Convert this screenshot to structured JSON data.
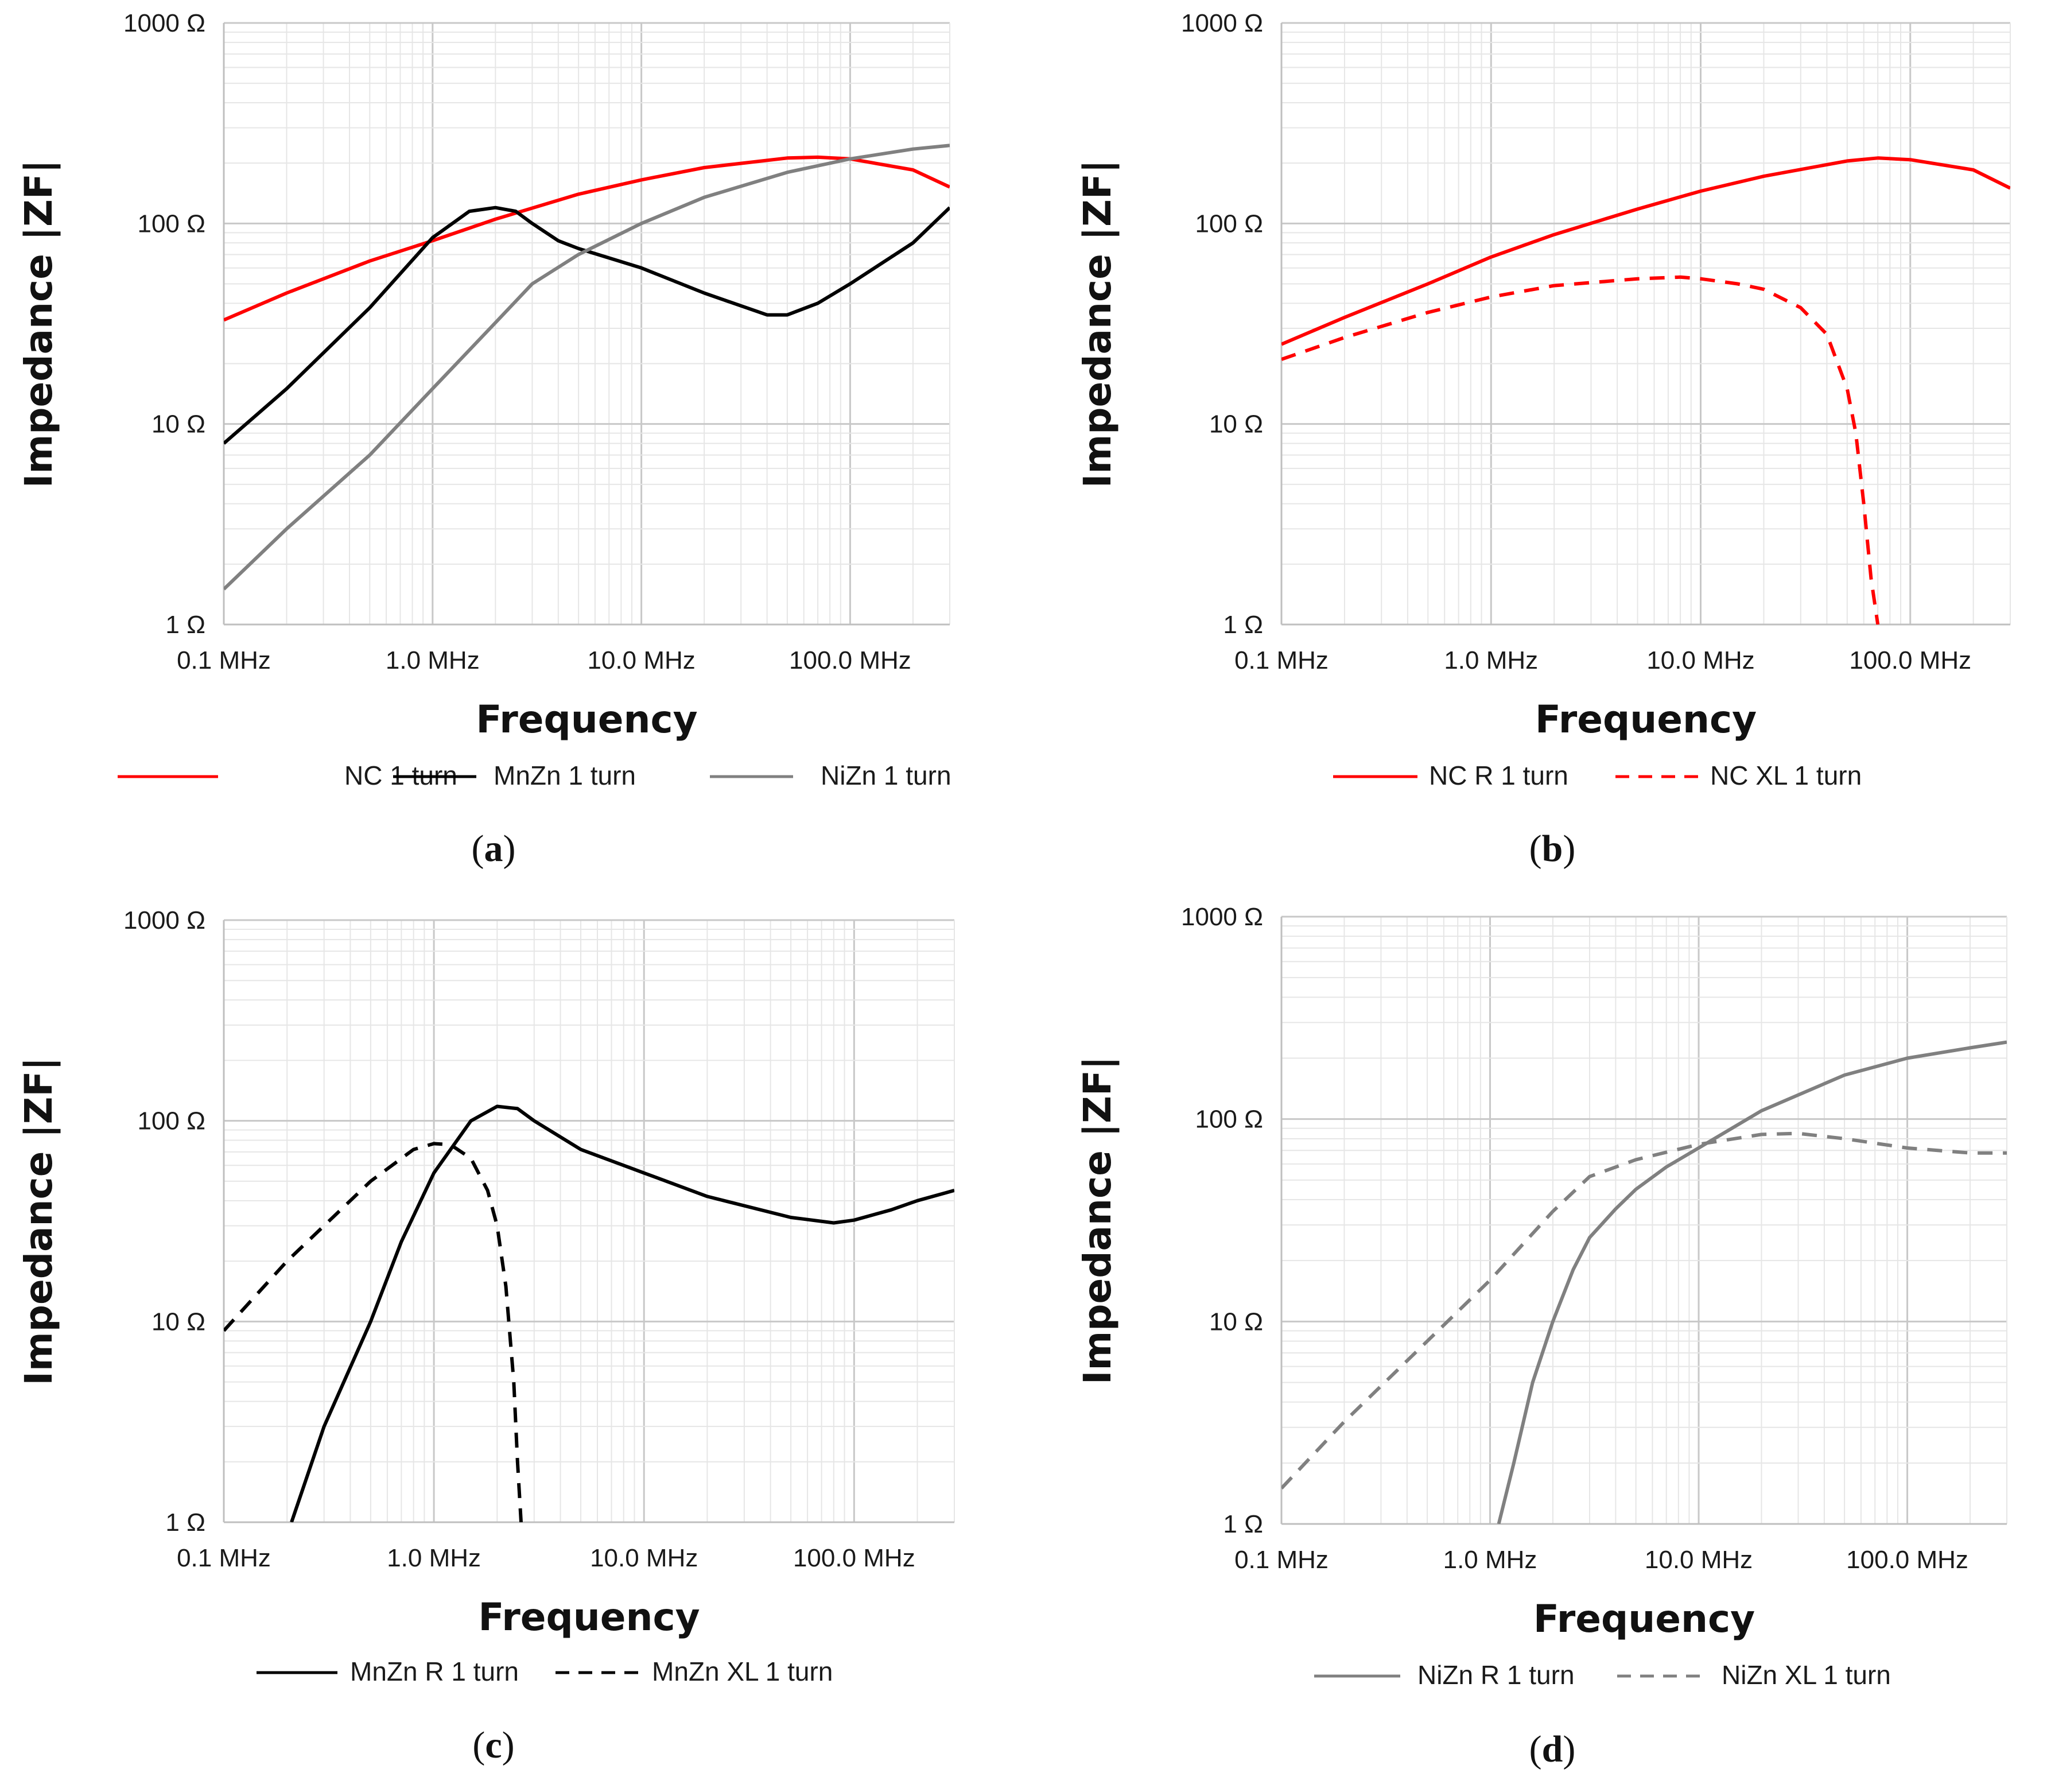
{
  "chart_data": [
    {
      "panel": "a",
      "type": "line",
      "xlabel": "Frequency",
      "ylabel": "Impedance |ZF|",
      "x_scale": "log",
      "y_scale": "log",
      "xlim": [
        0.1,
        300
      ],
      "ylim": [
        1,
        1000
      ],
      "x_ticks": [
        {
          "v": 0.1,
          "label": "0.1 MHz"
        },
        {
          "v": 1,
          "label": "1.0 MHz"
        },
        {
          "v": 10,
          "label": "10.0 MHz"
        },
        {
          "v": 100,
          "label": "100.0 MHz"
        }
      ],
      "y_ticks": [
        {
          "v": 1,
          "label": "1 Ω"
        },
        {
          "v": 10,
          "label": "10 Ω"
        },
        {
          "v": 100,
          "label": "100 Ω"
        },
        {
          "v": 1000,
          "label": "1000 Ω"
        }
      ],
      "series": [
        {
          "name": "NC 1 turn",
          "color": "#ff0000",
          "dash": "solid",
          "points": [
            [
              0.1,
              33
            ],
            [
              0.2,
              45
            ],
            [
              0.5,
              65
            ],
            [
              1,
              82
            ],
            [
              2,
              105
            ],
            [
              5,
              140
            ],
            [
              10,
              165
            ],
            [
              20,
              190
            ],
            [
              50,
              212
            ],
            [
              70,
              214
            ],
            [
              100,
              210
            ],
            [
              200,
              185
            ],
            [
              300,
              152
            ]
          ]
        },
        {
          "name": "MnZn 1 turn",
          "color": "#000000",
          "dash": "solid",
          "points": [
            [
              0.1,
              8
            ],
            [
              0.2,
              15
            ],
            [
              0.5,
              38
            ],
            [
              1,
              85
            ],
            [
              1.5,
              115
            ],
            [
              2,
              120
            ],
            [
              2.5,
              115
            ],
            [
              3,
              100
            ],
            [
              4,
              82
            ],
            [
              5,
              75
            ],
            [
              10,
              60
            ],
            [
              20,
              45
            ],
            [
              40,
              35
            ],
            [
              50,
              35
            ],
            [
              70,
              40
            ],
            [
              100,
              50
            ],
            [
              200,
              80
            ],
            [
              300,
              120
            ]
          ]
        },
        {
          "name": "NiZn 1 turn",
          "color": "#808080",
          "dash": "solid",
          "points": [
            [
              0.1,
              1.5
            ],
            [
              0.2,
              3
            ],
            [
              0.5,
              7
            ],
            [
              1,
              15
            ],
            [
              2,
              32
            ],
            [
              3,
              50
            ],
            [
              5,
              70
            ],
            [
              10,
              100
            ],
            [
              20,
              135
            ],
            [
              50,
              180
            ],
            [
              100,
              210
            ],
            [
              200,
              235
            ],
            [
              300,
              245
            ]
          ]
        }
      ]
    },
    {
      "panel": "b",
      "type": "line",
      "xlabel": "Frequency",
      "ylabel": "Impedance |ZF|",
      "x_scale": "log",
      "y_scale": "log",
      "xlim": [
        0.1,
        300
      ],
      "ylim": [
        1,
        1000
      ],
      "x_ticks": [
        {
          "v": 0.1,
          "label": "0.1 MHz"
        },
        {
          "v": 1,
          "label": "1.0 MHz"
        },
        {
          "v": 10,
          "label": "10.0 MHz"
        },
        {
          "v": 100,
          "label": "100.0 MHz"
        }
      ],
      "y_ticks": [
        {
          "v": 1,
          "label": "1 Ω"
        },
        {
          "v": 10,
          "label": "10 Ω"
        },
        {
          "v": 100,
          "label": "100 Ω"
        },
        {
          "v": 1000,
          "label": "1000 Ω"
        }
      ],
      "series": [
        {
          "name": "NC R 1 turn",
          "color": "#ff0000",
          "dash": "solid",
          "points": [
            [
              0.1,
              25
            ],
            [
              0.2,
              34
            ],
            [
              0.5,
              50
            ],
            [
              1,
              68
            ],
            [
              2,
              88
            ],
            [
              5,
              118
            ],
            [
              10,
              145
            ],
            [
              20,
              172
            ],
            [
              50,
              205
            ],
            [
              70,
              212
            ],
            [
              100,
              208
            ],
            [
              200,
              185
            ],
            [
              300,
              150
            ]
          ]
        },
        {
          "name": "NC XL 1 turn",
          "color": "#ff0000",
          "dash": "dashed",
          "points": [
            [
              0.1,
              21
            ],
            [
              0.2,
              27
            ],
            [
              0.5,
              36
            ],
            [
              1,
              43
            ],
            [
              2,
              49
            ],
            [
              5,
              53
            ],
            [
              8,
              54
            ],
            [
              10,
              53
            ],
            [
              15,
              50
            ],
            [
              20,
              47
            ],
            [
              30,
              38
            ],
            [
              40,
              28
            ],
            [
              50,
              15
            ],
            [
              55,
              9
            ],
            [
              60,
              4
            ],
            [
              65,
              1.7
            ],
            [
              70,
              1
            ]
          ]
        }
      ]
    },
    {
      "panel": "c",
      "type": "line",
      "xlabel": "Frequency",
      "ylabel": "Impedance |ZF|",
      "x_scale": "log",
      "y_scale": "log",
      "xlim": [
        0.1,
        300
      ],
      "ylim": [
        1,
        1000
      ],
      "x_ticks": [
        {
          "v": 0.1,
          "label": "0.1 MHz"
        },
        {
          "v": 1,
          "label": "1.0 MHz"
        },
        {
          "v": 10,
          "label": "10.0 MHz"
        },
        {
          "v": 100,
          "label": "100.0 MHz"
        }
      ],
      "y_ticks": [
        {
          "v": 1,
          "label": "1 Ω"
        },
        {
          "v": 10,
          "label": "10 Ω"
        },
        {
          "v": 100,
          "label": "100 Ω"
        },
        {
          "v": 1000,
          "label": "1000 Ω"
        }
      ],
      "series": [
        {
          "name": "MnZn R 1 turn",
          "color": "#000000",
          "dash": "solid",
          "points": [
            [
              0.21,
              1
            ],
            [
              0.3,
              3
            ],
            [
              0.5,
              10
            ],
            [
              0.7,
              25
            ],
            [
              1,
              55
            ],
            [
              1.5,
              100
            ],
            [
              2,
              118
            ],
            [
              2.5,
              115
            ],
            [
              3,
              100
            ],
            [
              5,
              72
            ],
            [
              10,
              55
            ],
            [
              20,
              42
            ],
            [
              50,
              33
            ],
            [
              80,
              31
            ],
            [
              100,
              32
            ],
            [
              150,
              36
            ],
            [
              200,
              40
            ],
            [
              300,
              45
            ]
          ]
        },
        {
          "name": "MnZn XL 1 turn",
          "color": "#000000",
          "dash": "dashed",
          "points": [
            [
              0.1,
              9
            ],
            [
              0.2,
              20
            ],
            [
              0.5,
              50
            ],
            [
              0.8,
              72
            ],
            [
              1,
              77
            ],
            [
              1.2,
              76
            ],
            [
              1.5,
              65
            ],
            [
              1.8,
              45
            ],
            [
              2,
              30
            ],
            [
              2.2,
              15
            ],
            [
              2.4,
              5
            ],
            [
              2.5,
              2
            ],
            [
              2.6,
              1
            ]
          ]
        }
      ]
    },
    {
      "panel": "d",
      "type": "line",
      "xlabel": "Frequency",
      "ylabel": "Impedance |ZF|",
      "x_scale": "log",
      "y_scale": "log",
      "xlim": [
        0.1,
        300
      ],
      "ylim": [
        1,
        1000
      ],
      "x_ticks": [
        {
          "v": 0.1,
          "label": "0.1 MHz"
        },
        {
          "v": 1,
          "label": "1.0 MHz"
        },
        {
          "v": 10,
          "label": "10.0 MHz"
        },
        {
          "v": 100,
          "label": "100.0 MHz"
        }
      ],
      "y_ticks": [
        {
          "v": 1,
          "label": "1 Ω"
        },
        {
          "v": 10,
          "label": "10 Ω"
        },
        {
          "v": 100,
          "label": "100 Ω"
        },
        {
          "v": 1000,
          "label": "1000 Ω"
        }
      ],
      "series": [
        {
          "name": "NiZn R 1 turn",
          "color": "#808080",
          "dash": "solid",
          "points": [
            [
              1.1,
              1
            ],
            [
              1.3,
              2
            ],
            [
              1.6,
              5
            ],
            [
              2,
              10
            ],
            [
              2.5,
              18
            ],
            [
              3,
              26
            ],
            [
              4,
              36
            ],
            [
              5,
              45
            ],
            [
              7,
              58
            ],
            [
              10,
              72
            ],
            [
              20,
              110
            ],
            [
              50,
              165
            ],
            [
              100,
              200
            ],
            [
              200,
              225
            ],
            [
              300,
              240
            ]
          ]
        },
        {
          "name": "NiZn XL 1 turn",
          "color": "#808080",
          "dash": "dashed",
          "points": [
            [
              0.1,
              1.5
            ],
            [
              0.2,
              3.2
            ],
            [
              0.5,
              8
            ],
            [
              1,
              16
            ],
            [
              2,
              35
            ],
            [
              3,
              52
            ],
            [
              5,
              63
            ],
            [
              10,
              75
            ],
            [
              20,
              84
            ],
            [
              30,
              85
            ],
            [
              50,
              80
            ],
            [
              100,
              72
            ],
            [
              200,
              68
            ],
            [
              300,
              68
            ]
          ]
        }
      ]
    }
  ],
  "panels": [
    {
      "label": "(a)",
      "letter": "a"
    },
    {
      "label": "(b)",
      "letter": "b"
    },
    {
      "label": "(c)",
      "letter": "c"
    },
    {
      "label": "(d)",
      "letter": "d"
    }
  ]
}
